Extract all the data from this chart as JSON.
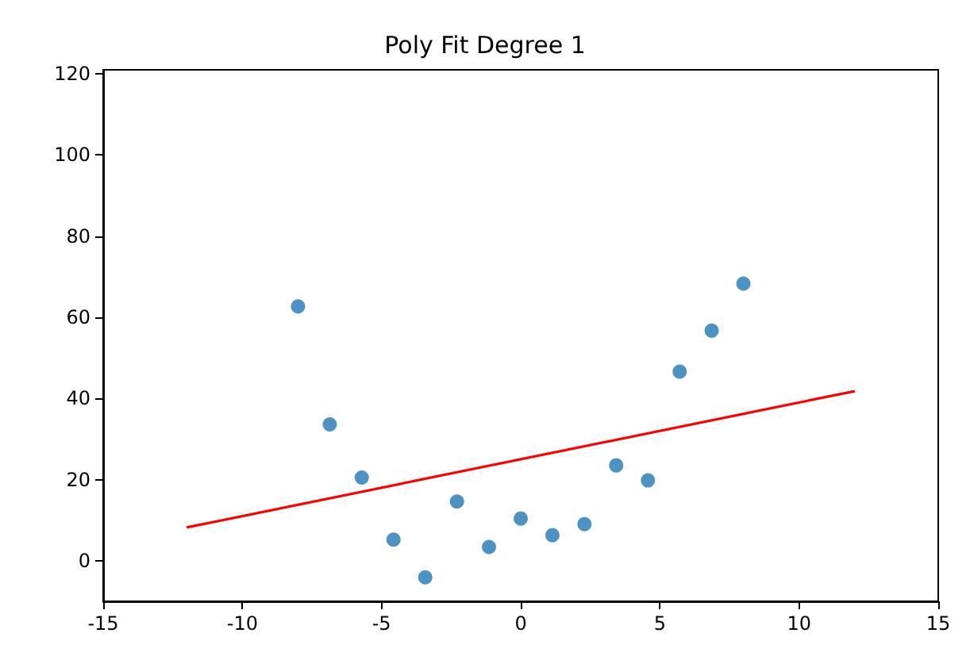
{
  "chart_data": {
    "type": "scatter",
    "title": "Poly Fit Degree 1",
    "xlim": [
      -15,
      15
    ],
    "xticks": [
      -15,
      -10,
      -5,
      0,
      5,
      10,
      15
    ],
    "ylim": [
      -10,
      121
    ],
    "yticks": [
      0,
      20,
      40,
      60,
      80,
      100,
      120
    ],
    "grid": false,
    "series": [
      {
        "marker": "circle",
        "color": "#1f77b4",
        "x": [
          -8,
          -6.86,
          -5.71,
          -4.57,
          -3.43,
          -2.29,
          -1.14,
          0,
          1.14,
          2.29,
          3.43,
          4.57,
          5.71,
          6.86,
          8
        ],
        "values": [
          62.7,
          33.6,
          20.5,
          5.2,
          -4.1,
          14.6,
          3.4,
          10.4,
          6.3,
          9,
          23.5,
          19.8,
          46.6,
          56.7,
          68.3
        ]
      },
      {
        "type": "line",
        "marker": "none",
        "color": "#ff0000",
        "x": [
          -12,
          12
        ],
        "values": [
          8.2,
          41.8
        ]
      }
    ]
  }
}
